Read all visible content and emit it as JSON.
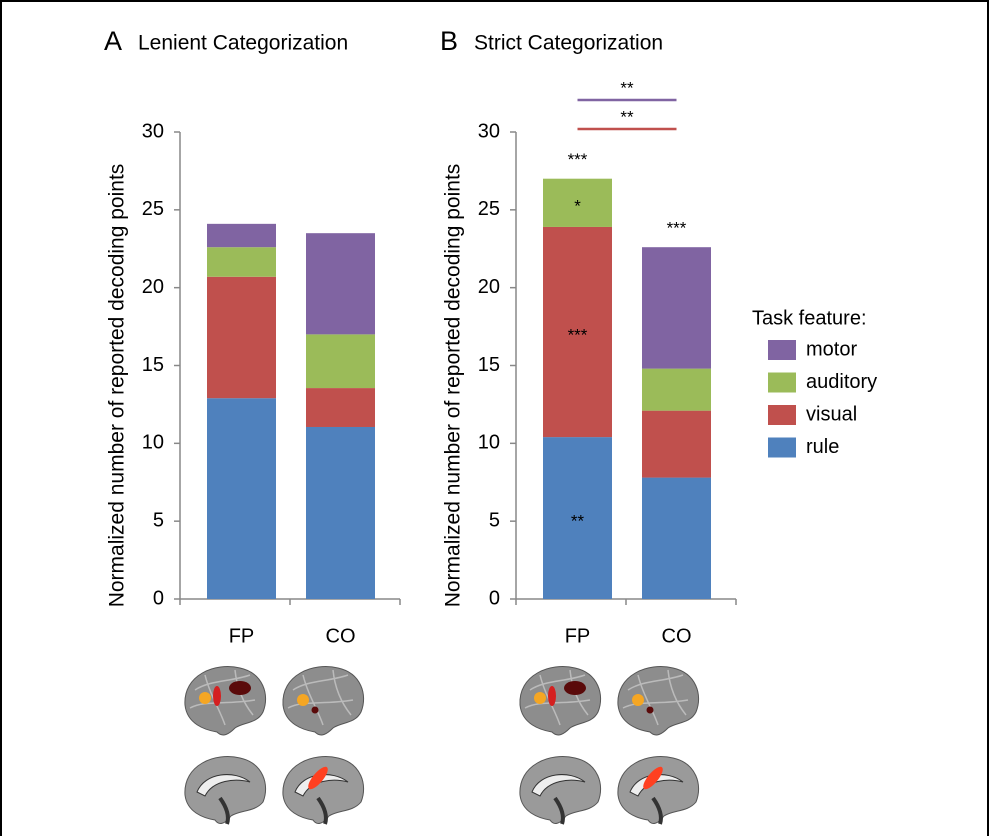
{
  "chart_data": [
    {
      "type": "bar",
      "stacked": true,
      "panel": "A",
      "title": "Lenient Categorization",
      "y_label": "Normalized number of reported decoding points",
      "categories": [
        "FP",
        "CO"
      ],
      "ylim": [
        0,
        30
      ],
      "yticks": [
        0,
        5,
        10,
        15,
        20,
        25,
        30
      ],
      "series": [
        {
          "name": "rule",
          "color": "#4f81bd",
          "values": [
            12.9,
            11.05
          ]
        },
        {
          "name": "visual",
          "color": "#c0504d",
          "values": [
            7.8,
            2.5
          ]
        },
        {
          "name": "auditory",
          "color": "#9bbb59",
          "values": [
            1.9,
            3.45
          ]
        },
        {
          "name": "motor",
          "color": "#8064a2",
          "values": [
            1.5,
            6.5
          ]
        }
      ]
    },
    {
      "type": "bar",
      "stacked": true,
      "panel": "B",
      "title": "Strict Categorization",
      "y_label": "Normalized number of reported decoding points",
      "categories": [
        "FP",
        "CO"
      ],
      "ylim": [
        0,
        30
      ],
      "yticks": [
        0,
        5,
        10,
        15,
        20,
        25,
        30
      ],
      "legend_title": "Task feature:",
      "series": [
        {
          "name": "rule",
          "color": "#4f81bd",
          "values": [
            10.4,
            7.8
          ],
          "annotations": [
            "**",
            null
          ]
        },
        {
          "name": "visual",
          "color": "#c0504d",
          "values": [
            13.5,
            4.3
          ],
          "annotations": [
            "***",
            null
          ]
        },
        {
          "name": "auditory",
          "color": "#9bbb59",
          "values": [
            3.1,
            2.7
          ],
          "annotations": [
            "*",
            null
          ]
        },
        {
          "name": "motor",
          "color": "#8064a2",
          "values": [
            0,
            7.8
          ],
          "annotations": [
            null,
            null
          ]
        }
      ],
      "total_annotations": [
        "***",
        "***"
      ],
      "comparisons": [
        {
          "series": "motor",
          "label": "**"
        },
        {
          "series": "visual",
          "label": "**"
        }
      ]
    }
  ]
}
